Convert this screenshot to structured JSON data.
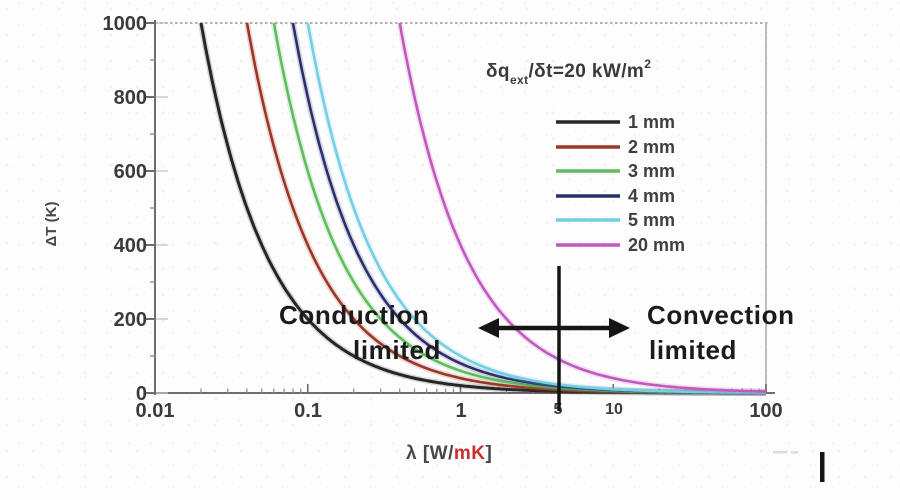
{
  "page": {
    "background": "#fdfdfd"
  },
  "chart_data": {
    "type": "line",
    "x_scale": "log",
    "xlim": [
      0.01,
      100
    ],
    "ylim": [
      0,
      1000
    ],
    "grid": "off",
    "legend_position": "upper right inside plot",
    "x_axis": {
      "title_prefix": "λ [W/",
      "title_highlight": "mK",
      "title_suffix": "]",
      "highlight_color": "#c9302c",
      "tick_labels": [
        "0.01",
        "0.1",
        "1",
        "5",
        "10",
        "100"
      ],
      "tick_values": [
        0.01,
        0.1,
        1,
        5,
        10,
        100
      ]
    },
    "y_axis": {
      "title": "ΔT (K)",
      "tick_labels": [
        "1000",
        "800",
        "600",
        "400",
        "200",
        "0"
      ],
      "tick_values": [
        1000,
        800,
        600,
        400,
        200,
        0
      ]
    },
    "heat_flux_annotation": {
      "base": "δq",
      "subscript": "ext",
      "middle": "/δt=20 kW/m",
      "superscript": "2",
      "q_kW_per_m2": 20
    },
    "curve_model": "deltaT_K = q_ext(kW/m2) * thickness_mm / lambda, clipped at 1000 K (conduction-limited hyperbolas decaying toward 0 at high lambda)",
    "series": [
      {
        "name": "1 mm",
        "thickness_mm": 1,
        "color": "#262626"
      },
      {
        "name": "2 mm",
        "thickness_mm": 2,
        "color": "#9b3726"
      },
      {
        "name": "3 mm",
        "thickness_mm": 3,
        "color": "#5fbd5f"
      },
      {
        "name": "4 mm",
        "thickness_mm": 4,
        "color": "#2c2f6e"
      },
      {
        "name": "5 mm",
        "thickness_mm": 5,
        "color": "#72cfe4"
      },
      {
        "name": "20 mm",
        "thickness_mm": 20,
        "color": "#c159be"
      }
    ],
    "threshold_marker_lambda": 5,
    "regions": {
      "left": {
        "line1": "Conduction",
        "line2": "limited"
      },
      "right": {
        "line1": "Convection",
        "line2": "limited"
      }
    }
  }
}
